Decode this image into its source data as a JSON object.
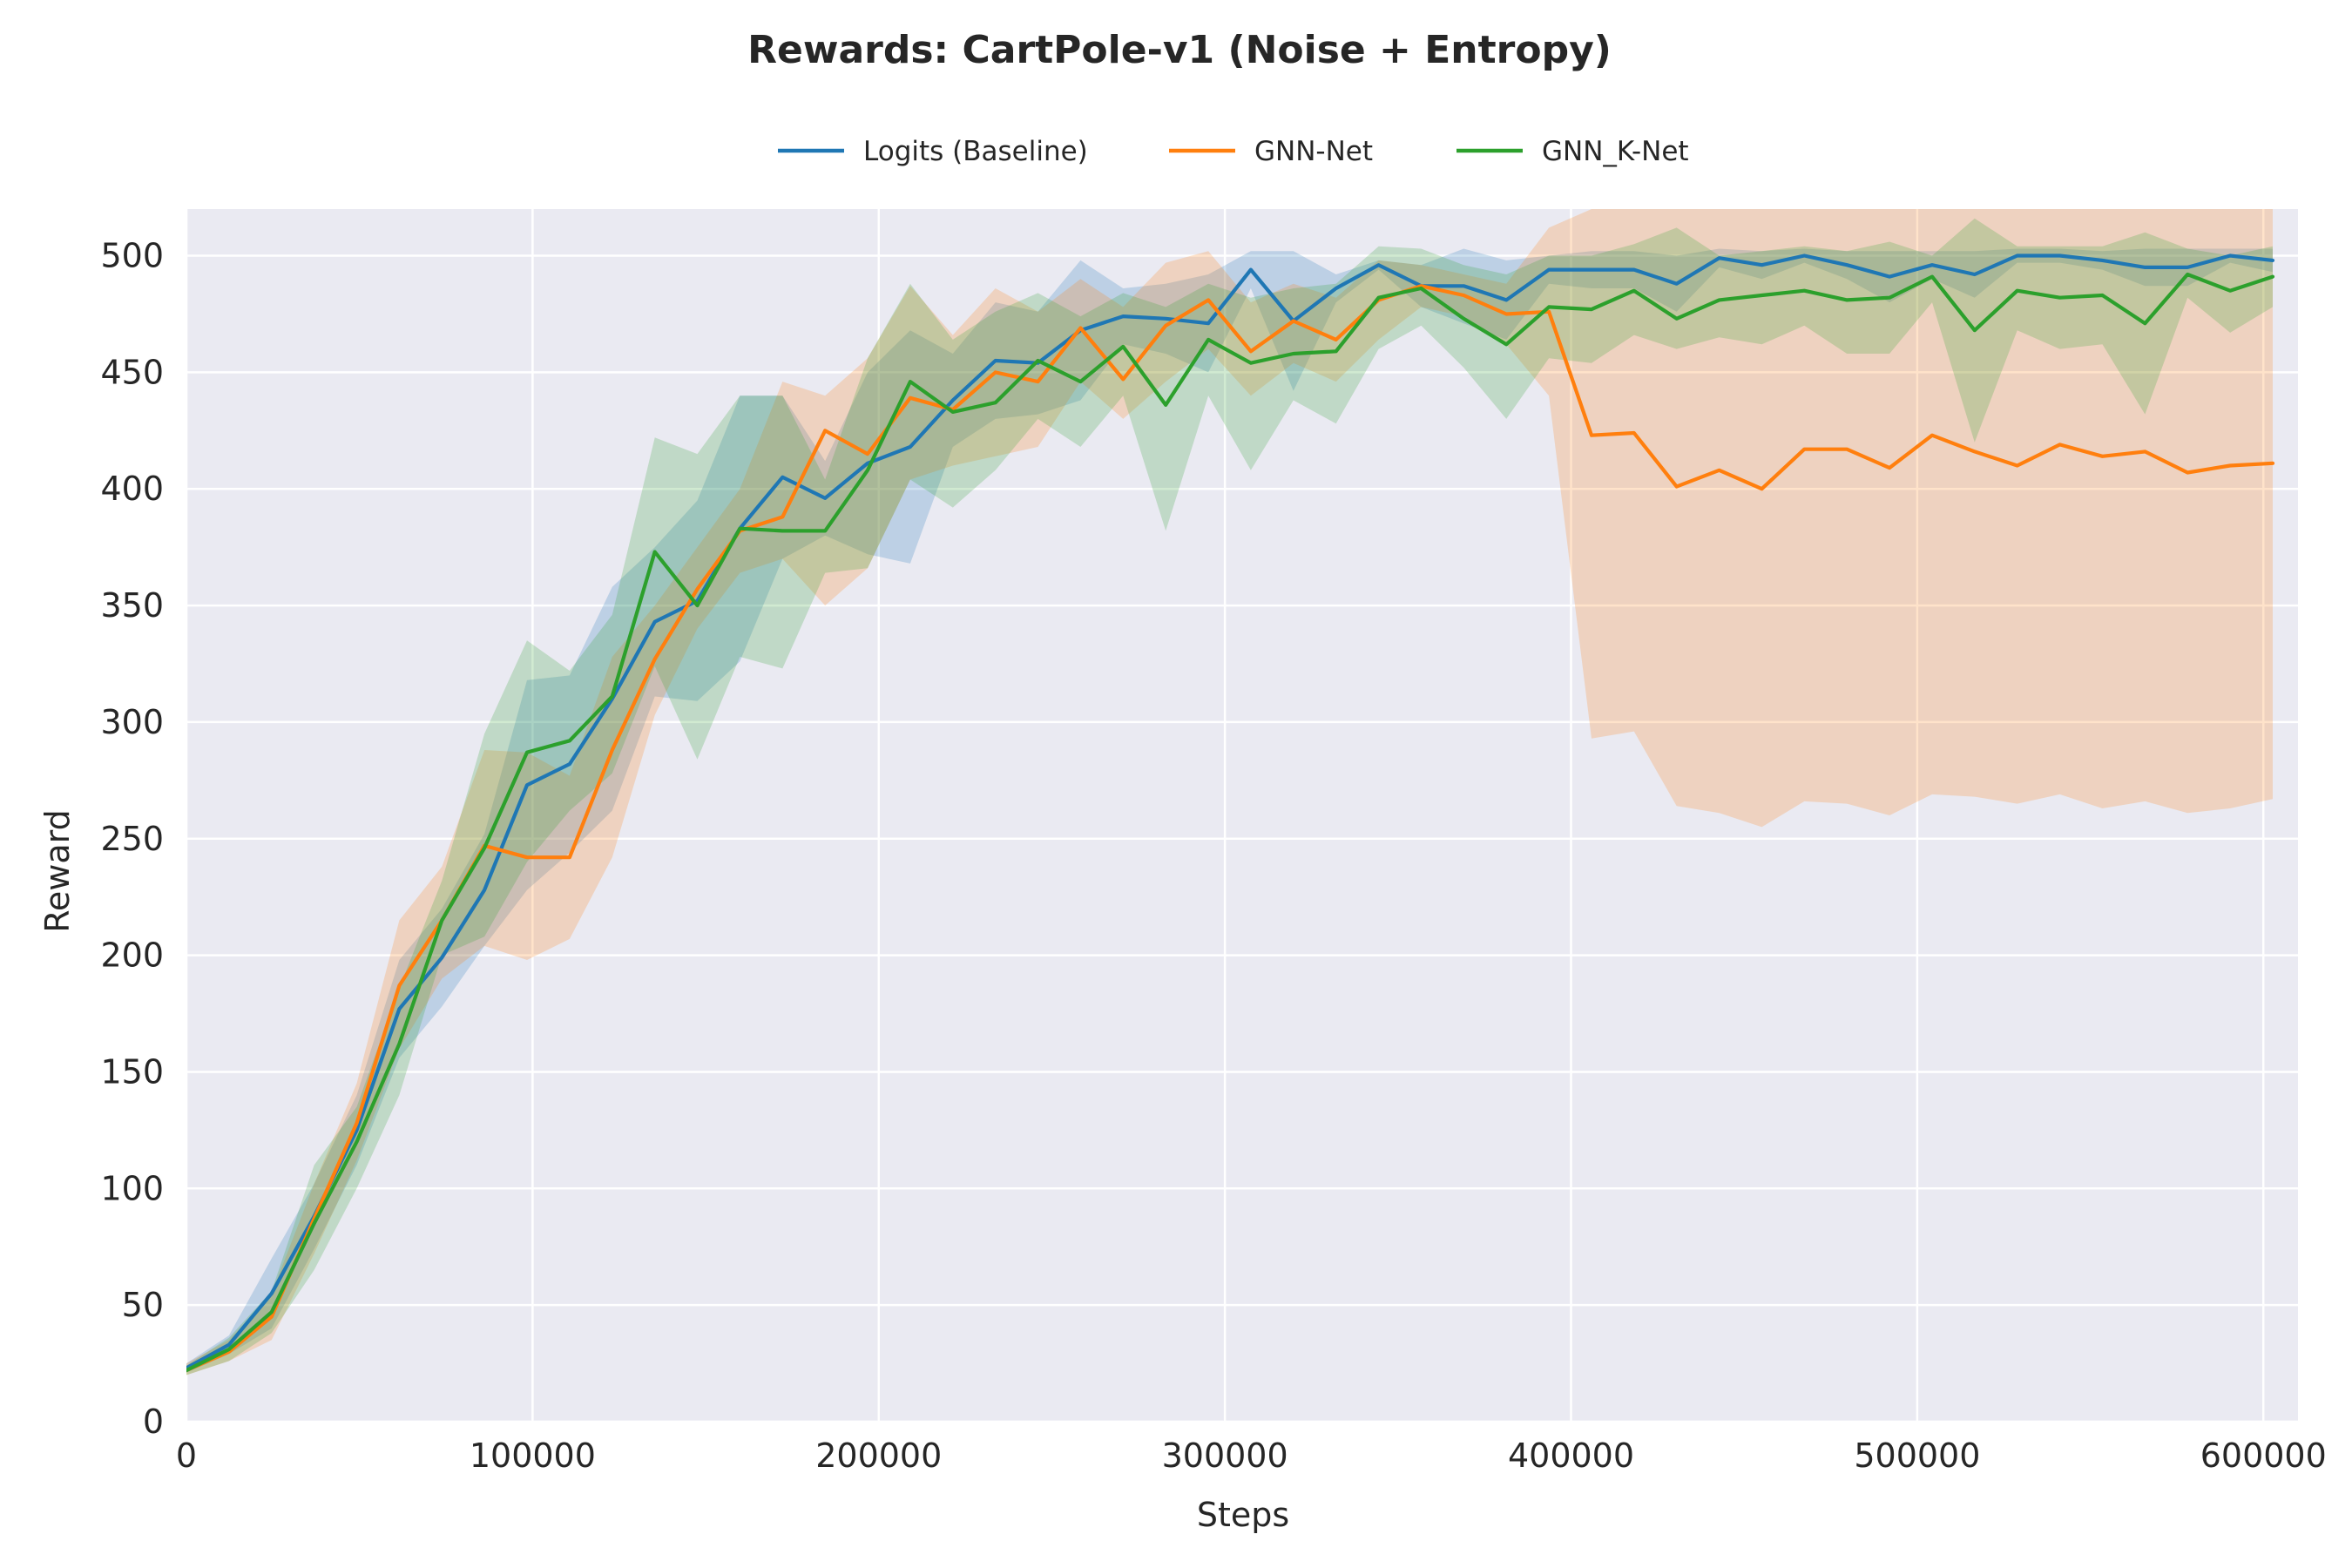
{
  "chart_data": {
    "type": "line",
    "title": "Rewards: CartPole-v1 (Noise + Entropy)",
    "xlabel": "Steps",
    "ylabel": "Reward",
    "xlim": [
      0,
      610000
    ],
    "ylim": [
      0,
      520
    ],
    "xticks": [
      0,
      100000,
      200000,
      300000,
      400000,
      500000,
      600000
    ],
    "yticks": [
      0,
      50,
      100,
      150,
      200,
      250,
      300,
      350,
      400,
      450,
      500
    ],
    "grid": true,
    "legend_position": "top-center",
    "background": "#eaeaf2",
    "x": [
      0,
      12300,
      24600,
      36900,
      49200,
      61500,
      73800,
      86100,
      98400,
      110700,
      123000,
      135300,
      147600,
      159900,
      172200,
      184500,
      196800,
      209100,
      221400,
      233700,
      246000,
      258300,
      270600,
      282900,
      295200,
      307500,
      319800,
      332100,
      344400,
      356700,
      369000,
      381300,
      393600,
      405900,
      418200,
      430500,
      442800,
      455100,
      467400,
      479700,
      492000,
      504300,
      516600,
      528900,
      541200,
      553500,
      565800,
      578100,
      590400,
      602700
    ],
    "series": [
      {
        "name": "Logits (Baseline)",
        "color": "#1f77b4",
        "values": [
          23,
          33,
          55,
          88,
          125,
          177,
          199,
          228,
          273,
          282,
          310,
          343,
          352,
          383,
          405,
          396,
          411,
          418,
          438,
          455,
          454,
          468,
          474,
          473,
          471,
          494,
          472,
          486,
          496,
          487,
          487,
          481,
          494,
          494,
          494,
          488,
          499,
          496,
          500,
          496,
          491,
          496,
          492,
          500,
          500,
          498,
          495,
          495,
          500,
          498
        ],
        "upper": [
          25,
          37,
          70,
          102,
          140,
          198,
          220,
          252,
          318,
          320,
          358,
          375,
          395,
          440,
          440,
          412,
          450,
          468,
          458,
          480,
          476,
          498,
          486,
          488,
          492,
          502,
          502,
          492,
          498,
          496,
          503,
          498,
          500,
          502,
          502,
          500,
          503,
          502,
          503,
          502,
          502,
          502,
          502,
          503,
          503,
          502,
          503,
          503,
          503,
          503
        ],
        "lower": [
          21,
          29,
          40,
          74,
          110,
          156,
          178,
          204,
          228,
          244,
          262,
          311,
          309,
          326,
          370,
          380,
          372,
          368,
          418,
          430,
          432,
          438,
          462,
          458,
          450,
          486,
          442,
          480,
          494,
          478,
          471,
          464,
          488,
          486,
          486,
          476,
          495,
          490,
          497,
          490,
          480,
          490,
          482,
          497,
          497,
          494,
          487,
          487,
          497,
          493
        ]
      },
      {
        "name": "GNN-Net",
        "color": "#ff7f0e",
        "values": [
          22,
          30,
          45,
          87,
          128,
          187,
          215,
          247,
          242,
          242,
          288,
          327,
          357,
          382,
          388,
          425,
          415,
          439,
          434,
          450,
          446,
          469,
          447,
          470,
          481,
          459,
          472,
          464,
          481,
          487,
          483,
          475,
          476,
          423,
          424,
          401,
          408,
          400,
          417,
          417,
          409,
          423,
          416,
          410,
          419,
          414,
          416,
          407,
          410,
          411
        ],
        "upper": [
          25,
          35,
          55,
          102,
          145,
          215,
          238,
          288,
          287,
          277,
          328,
          350,
          375,
          400,
          446,
          440,
          456,
          487,
          466,
          486,
          476,
          490,
          478,
          497,
          502,
          480,
          488,
          482,
          498,
          496,
          492,
          488,
          512,
          520,
          520,
          520,
          520,
          520,
          520,
          520,
          520,
          520,
          520,
          520,
          520,
          520,
          520,
          520,
          520,
          520
        ],
        "lower": [
          20,
          26,
          35,
          72,
          112,
          160,
          190,
          204,
          198,
          207,
          242,
          303,
          340,
          364,
          370,
          350,
          366,
          404,
          410,
          414,
          418,
          446,
          430,
          446,
          460,
          440,
          454,
          446,
          464,
          478,
          474,
          462,
          440,
          293,
          296,
          264,
          261,
          255,
          266,
          265,
          260,
          269,
          268,
          265,
          269,
          263,
          266,
          261,
          263,
          267
        ]
      },
      {
        "name": "GNN_K-Net",
        "color": "#2ca02c",
        "values": [
          22,
          31,
          47,
          85,
          120,
          162,
          215,
          246,
          287,
          292,
          311,
          373,
          350,
          383,
          382,
          382,
          408,
          446,
          433,
          437,
          455,
          446,
          461,
          436,
          464,
          454,
          458,
          459,
          482,
          486,
          473,
          462,
          478,
          477,
          485,
          473,
          481,
          483,
          485,
          481,
          482,
          491,
          468,
          485,
          482,
          483,
          471,
          492,
          485,
          491
        ],
        "upper": [
          24,
          36,
          56,
          110,
          135,
          186,
          232,
          295,
          335,
          322,
          346,
          422,
          415,
          440,
          440,
          404,
          456,
          488,
          464,
          476,
          484,
          474,
          484,
          478,
          488,
          482,
          486,
          488,
          504,
          503,
          496,
          492,
          500,
          500,
          505,
          512,
          500,
          502,
          504,
          502,
          506,
          500,
          516,
          504,
          504,
          504,
          510,
          503,
          500,
          504
        ],
        "lower": [
          20,
          26,
          38,
          65,
          100,
          140,
          200,
          208,
          240,
          262,
          278,
          324,
          284,
          328,
          323,
          364,
          366,
          404,
          392,
          408,
          430,
          418,
          440,
          382,
          440,
          408,
          438,
          428,
          460,
          470,
          452,
          430,
          456,
          454,
          466,
          460,
          465,
          462,
          470,
          458,
          458,
          480,
          420,
          468,
          460,
          462,
          432,
          482,
          467,
          478
        ]
      }
    ]
  }
}
